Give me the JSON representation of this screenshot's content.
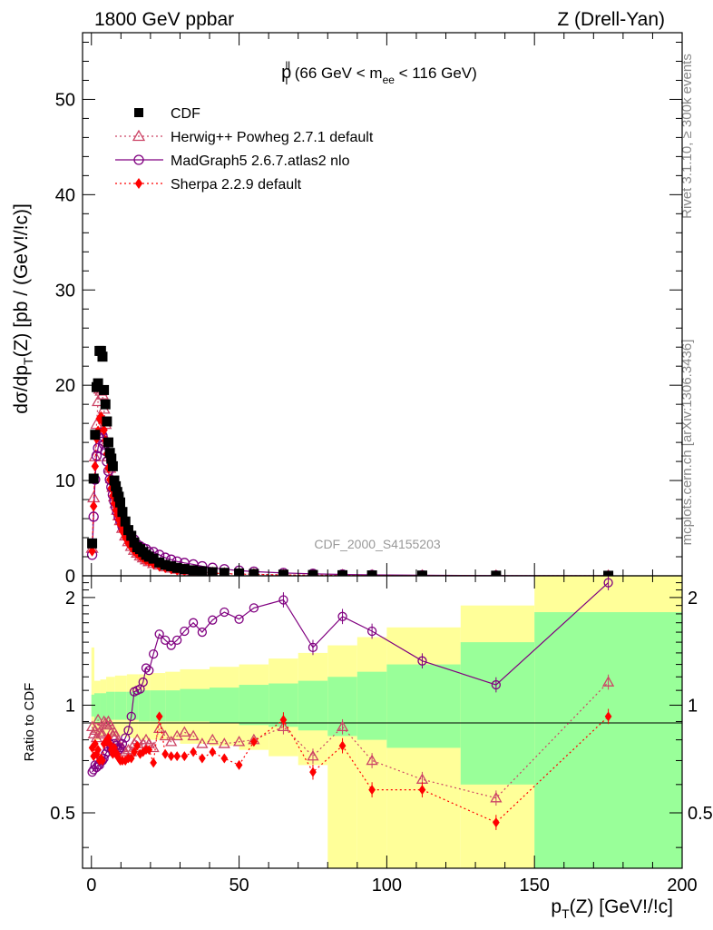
{
  "header": {
    "left": "1800 GeV ppbar",
    "right": "Z (Drell-Yan)"
  },
  "side_labels": {
    "rivet": "Rivet 3.1.10, ≥ 300k events",
    "mcplots": "mcplots.cern.ch [arXiv:1306.3436]"
  },
  "watermark": "CDF_2000_S4155203",
  "colors": {
    "cdf": "#000000",
    "herwig": "#cc4466",
    "madgraph": "#800080",
    "sherpa": "#ff0000",
    "band_inner": "#99ff99",
    "band_outer": "#ffff99"
  },
  "chart_data": [
    {
      "type": "scatter",
      "panel": "main",
      "title_main": "p",
      "title_sup": "ll",
      "title_sub": "T",
      "title_rest1": " (66 GeV < m",
      "title_sub2": "ee",
      "title_rest2": " < 116 GeV)",
      "ylabel": "dσ/dp_T(Z) [pb / (GeV!/!c)]",
      "ylabel_a": "dσ/dp",
      "ylabel_b": "T",
      "ylabel_c": "(Z) [pb / (GeV!/!c)]",
      "xlim": [
        -3,
        200
      ],
      "ylim": [
        0,
        57
      ],
      "yticks": [
        0,
        10,
        20,
        30,
        40,
        50
      ],
      "ytick_labels": [
        "0",
        "10",
        "20",
        "30",
        "40",
        "50"
      ],
      "legend_position": "top-left",
      "x": [
        0.25,
        0.75,
        1.25,
        1.75,
        2.25,
        2.75,
        3.25,
        3.75,
        4.25,
        4.75,
        5.25,
        5.75,
        6.25,
        6.75,
        7.25,
        7.75,
        8.25,
        8.75,
        9.25,
        9.75,
        10.5,
        11.5,
        12.5,
        13.5,
        14.5,
        15.5,
        16.5,
        17.5,
        18.5,
        19.5,
        21,
        23,
        25,
        27,
        29,
        31.5,
        34.5,
        37.5,
        41,
        45,
        50,
        55,
        65,
        75,
        85,
        95,
        112,
        137,
        175
      ],
      "series": [
        {
          "name": "CDF",
          "marker": "filled-square",
          "values": [
            3.4,
            10.2,
            14.8,
            19.8,
            20.2,
            23.6,
            23.6,
            23.0,
            19.5,
            18.0,
            16.2,
            14.0,
            12.9,
            12.3,
            11.5,
            10.0,
            9.4,
            8.8,
            8.3,
            7.7,
            6.7,
            5.7,
            4.8,
            4.2,
            3.5,
            3.0,
            2.8,
            2.5,
            2.2,
            2.0,
            1.8,
            1.4,
            1.15,
            1.0,
            0.83,
            0.71,
            0.58,
            0.48,
            0.38,
            0.31,
            0.25,
            0.19,
            0.12,
            0.085,
            0.06,
            0.042,
            0.026,
            0.012,
            0.0045
          ]
        },
        {
          "name": "Herwig++ Powheg 2.7.1 default",
          "marker": "open-triangle",
          "line": "dotted",
          "values": [
            2.9,
            8.2,
            12.5,
            15.9,
            18.3,
            19.6,
            19.4,
            19.0,
            17.5,
            15.9,
            14.1,
            12.5,
            11.3,
            10.2,
            9.3,
            8.3,
            7.6,
            6.9,
            6.3,
            5.8,
            5.0,
            4.2,
            3.6,
            3.1,
            2.7,
            2.4,
            2.1,
            1.9,
            1.7,
            1.5,
            1.3,
            1.15,
            0.95,
            0.82,
            0.7,
            0.6,
            0.48,
            0.39,
            0.31,
            0.25,
            0.2,
            0.16,
            0.094,
            0.061,
            0.052,
            0.029,
            0.016,
            0.0066,
            0.0052
          ]
        },
        {
          "name": "MadGraph5 2.6.7.atlas2 nlo",
          "marker": "open-circle",
          "line": "solid",
          "values": [
            2.2,
            6.2,
            10.1,
            12.6,
            13.4,
            14.5,
            15.0,
            14.7,
            13.8,
            13.1,
            12.0,
            11.0,
            10.1,
            9.3,
            8.5,
            7.8,
            7.2,
            6.7,
            6.2,
            5.8,
            5.2,
            4.6,
            4.1,
            3.9,
            3.8,
            3.3,
            3.1,
            2.9,
            2.8,
            2.5,
            2.5,
            2.2,
            1.9,
            1.7,
            1.5,
            1.35,
            1.2,
            1.0,
            0.84,
            0.69,
            0.55,
            0.44,
            0.3,
            0.21,
            0.14,
            0.097,
            0.06,
            0.029,
            0.012
          ]
        },
        {
          "name": "Sherpa 2.2.9 default",
          "marker": "filled-diamond",
          "line": "dotted",
          "values": [
            2.6,
            7.3,
            11.5,
            14.4,
            15.2,
            16.5,
            16.7,
            16.2,
            15.3,
            14.2,
            12.8,
            11.3,
            10.1,
            9.2,
            8.4,
            7.6,
            6.9,
            6.4,
            5.9,
            5.4,
            4.7,
            4.0,
            3.4,
            3.0,
            2.6,
            2.3,
            2.05,
            1.85,
            1.65,
            1.5,
            1.25,
            1.0,
            0.84,
            0.72,
            0.6,
            0.51,
            0.43,
            0.34,
            0.28,
            0.22,
            0.17,
            0.15,
            0.09,
            0.06,
            0.048,
            0.026,
            0.015,
            0.0058,
            0.0042
          ]
        }
      ]
    },
    {
      "type": "line",
      "panel": "ratio",
      "ylabel": "Ratio to CDF",
      "xlabel": "p_T(Z) [GeV!/!c]",
      "xlabel_a": "p",
      "xlabel_b": "T",
      "xlabel_c": "(Z) [GeV!/!c]",
      "xlim": [
        -3,
        200
      ],
      "ylim": [
        0.35,
        2.3
      ],
      "yticks": [
        0.5,
        1,
        2
      ],
      "ytick_labels": [
        "0.5",
        "1",
        "2"
      ],
      "xticks": [
        0,
        50,
        100,
        150,
        200
      ],
      "xtick_labels": [
        "0",
        "50",
        "100",
        "150",
        "200"
      ],
      "bands": {
        "edges": [
          0,
          1,
          3,
          5,
          8,
          12,
          16,
          20,
          25,
          30,
          40,
          50,
          60,
          70,
          80,
          90,
          100,
          125,
          150,
          200
        ],
        "inner_low": [
          0.93,
          0.9,
          0.91,
          0.91,
          0.91,
          0.91,
          0.9,
          0.9,
          0.9,
          0.9,
          0.89,
          0.88,
          0.87,
          0.85,
          0.82,
          0.8,
          0.76,
          0.6,
          0.35,
          0.35
        ],
        "inner_high": [
          1.07,
          1.08,
          1.08,
          1.09,
          1.09,
          1.09,
          1.1,
          1.1,
          1.1,
          1.11,
          1.12,
          1.14,
          1.15,
          1.17,
          1.2,
          1.24,
          1.3,
          1.5,
          1.82,
          1.82
        ],
        "outer_low": [
          0.84,
          0.8,
          0.82,
          0.82,
          0.82,
          0.81,
          0.8,
          0.8,
          0.8,
          0.78,
          0.77,
          0.75,
          0.72,
          0.68,
          0.35,
          0.35,
          0.35,
          0.35,
          0.35,
          0.35
        ],
        "outer_high": [
          1.45,
          1.17,
          1.18,
          1.2,
          1.21,
          1.22,
          1.22,
          1.23,
          1.24,
          1.26,
          1.28,
          1.3,
          1.35,
          1.4,
          1.47,
          1.55,
          1.65,
          1.9,
          2.3,
          2.3
        ]
      },
      "series": [
        {
          "name": "Herwig++ Powheg 2.7.1 default",
          "values": [
            0.87,
            0.83,
            0.85,
            0.81,
            0.91,
            0.84,
            0.83,
            0.83,
            0.9,
            0.89,
            0.88,
            0.9,
            0.88,
            0.84,
            0.82,
            0.84,
            0.82,
            0.79,
            0.77,
            0.76,
            0.76,
            0.74,
            0.75,
            0.74,
            0.78,
            0.8,
            0.76,
            0.78,
            0.8,
            0.78,
            0.76,
            0.86,
            0.82,
            0.79,
            0.82,
            0.84,
            0.82,
            0.78,
            0.8,
            0.78,
            0.79,
            0.8,
            0.87,
            0.72,
            0.87,
            0.7,
            0.62,
            0.55,
            1.16
          ]
        },
        {
          "name": "MadGraph5 2.6.7.atlas2 nlo",
          "values": [
            0.65,
            0.66,
            0.68,
            0.67,
            0.68,
            0.68,
            0.7,
            0.7,
            0.71,
            0.73,
            0.74,
            0.76,
            0.78,
            0.76,
            0.74,
            0.78,
            0.77,
            0.76,
            0.75,
            0.76,
            0.78,
            0.81,
            0.85,
            0.93,
            1.09,
            1.1,
            1.11,
            1.16,
            1.27,
            1.25,
            1.39,
            1.58,
            1.52,
            1.47,
            1.52,
            1.61,
            1.7,
            1.6,
            1.73,
            1.82,
            1.74,
            1.87,
            1.97,
            1.45,
            1.77,
            1.61,
            1.33,
            1.14,
            2.2
          ]
        },
        {
          "name": "Sherpa 2.2.9 default",
          "values": [
            0.76,
            0.72,
            0.78,
            0.73,
            0.75,
            0.7,
            0.71,
            0.7,
            0.78,
            0.79,
            0.79,
            0.81,
            0.78,
            0.75,
            0.73,
            0.76,
            0.73,
            0.73,
            0.71,
            0.7,
            0.7,
            0.7,
            0.71,
            0.71,
            0.74,
            0.77,
            0.73,
            0.74,
            0.75,
            0.75,
            0.69,
            0.93,
            0.73,
            0.72,
            0.72,
            0.72,
            0.74,
            0.71,
            0.74,
            0.71,
            0.68,
            0.79,
            0.91,
            0.65,
            0.77,
            0.58,
            0.58,
            0.47,
            0.93
          ]
        }
      ]
    }
  ]
}
